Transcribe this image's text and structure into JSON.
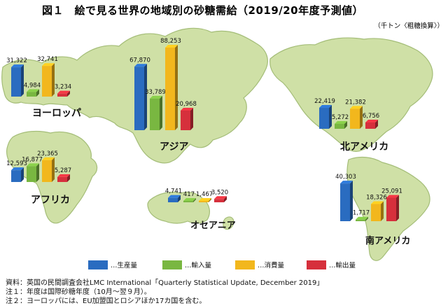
{
  "title": "図１　絵で見る世界の地域別の砂糖需給（2019/20年度予測値）",
  "unit": "（千トン〈粗糖換算〉）",
  "notes": [
    "資料：英国の民間調査会社LMC International「Quarterly Statistical Update, December 2019」",
    "注１：年度は国際砂糖年度（10月～翌９月）。",
    "注２：ヨーロッパには、EU加盟国とロシアほか17カ国を含む。"
  ],
  "colors": {
    "land": "#cfe0a6",
    "land_edge": "#a4bd78",
    "land_side": "#98b066"
  },
  "chart_data": {
    "type": "bar",
    "categories": [
      "ヨーロッパ",
      "アジア",
      "アフリカ",
      "オセアニア",
      "北アメリカ",
      "南アメリカ"
    ],
    "series": [
      {
        "name": "生産量",
        "color": "#2a6cc0",
        "values": [
          31322,
          67870,
          12593,
          4741,
          22419,
          40303
        ]
      },
      {
        "name": "輸入量",
        "color": "#79b741",
        "values": [
          4984,
          33789,
          16877,
          417,
          5272,
          1717
        ]
      },
      {
        "name": "消費量",
        "color": "#f2b71d",
        "values": [
          32741,
          88253,
          23365,
          1467,
          21382,
          18326
        ]
      },
      {
        "name": "輸出量",
        "color": "#d6303c",
        "values": [
          3234,
          20968,
          5287,
          3520,
          6756,
          25091
        ]
      }
    ],
    "value_labels": {
      "ヨーロッパ": [
        "31,322",
        "4,984",
        "32,741",
        "3,234"
      ],
      "アジア": [
        "67,870",
        "33,789",
        "88,253",
        "20,968"
      ],
      "アフリカ": [
        "12,593",
        "16,877",
        "23,365",
        "5,287"
      ],
      "オセアニア": [
        "4,741",
        "417",
        "1,467",
        "3,520"
      ],
      "北アメリカ": [
        "22,419",
        "5,272",
        "21,382",
        "6,756"
      ],
      "南アメリカ": [
        "40,303",
        "1,717",
        "18,326",
        "25,091"
      ]
    },
    "legend_placement": "bottom",
    "legend_labels": [
      "…生産量",
      "…輸入量",
      "…消費量",
      "…輸出量"
    ],
    "grid": false
  }
}
